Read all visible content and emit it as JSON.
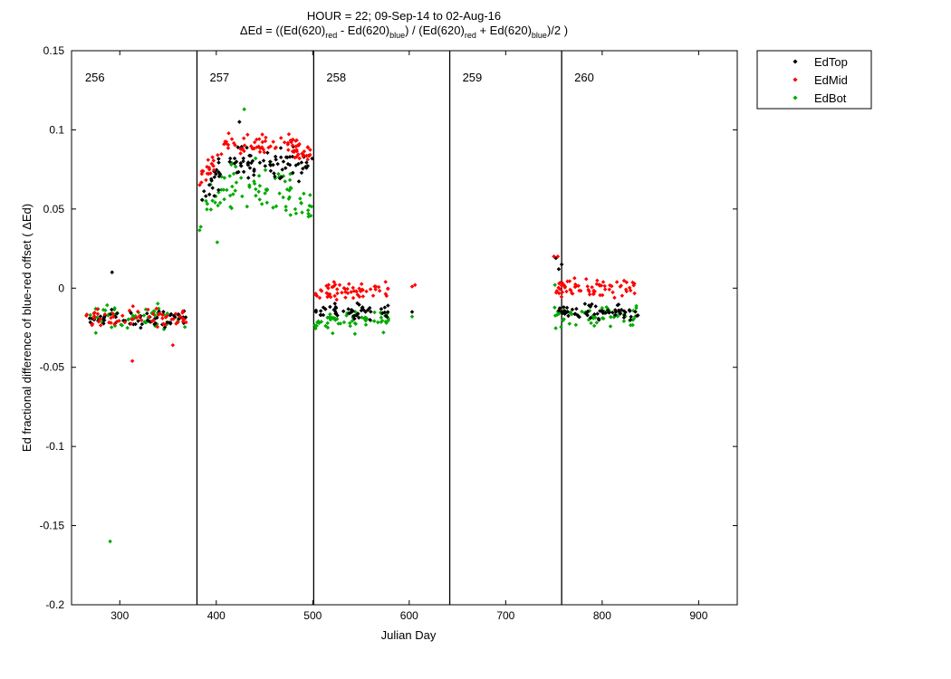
{
  "chart_data": {
    "type": "scatter",
    "title_line1": "HOUR = 22; 09-Sep-14 to 02-Aug-16",
    "title_line2": {
      "prefix": "ΔEd = ((Ed(620)",
      "sub_red": "red",
      "mid1": " - Ed(620)",
      "sub_blue": "blue",
      "mid2": ") / (Ed(620)",
      "sub_red2": "red",
      "mid3": " + Ed(620)",
      "sub_blue2": "blue",
      "suffix": ")/2  )"
    },
    "xlabel": "Julian Day",
    "ylabel": "Ed fractional difference of blue-red offset ( ΔEd)",
    "xlim": [
      250,
      940
    ],
    "ylim": [
      -0.2,
      0.15
    ],
    "xticks": [
      300,
      400,
      500,
      600,
      700,
      800,
      900
    ],
    "yticks": [
      0.15,
      0.1,
      0.05,
      0,
      -0.05,
      -0.1,
      -0.15,
      -0.2
    ],
    "ytick_labels": [
      "0.15",
      "0.1",
      "0.05",
      "0",
      "-0.05",
      "-0.1",
      "-0.15",
      "-0.2"
    ],
    "grid": false,
    "legend_position": "outside top-right",
    "dividers": [
      {
        "x": 380,
        "label": "257"
      },
      {
        "x": 501,
        "label": "258"
      },
      {
        "x": 642,
        "label": "259"
      },
      {
        "x": 758,
        "label": "260"
      }
    ],
    "first_segment_label": "256",
    "series": [
      {
        "name": "EdTop",
        "color": "#000000",
        "clusters": [
          {
            "x": [
              265,
              370
            ],
            "y": -0.019,
            "spread": 0.004,
            "n": 60
          },
          {
            "x": [
              382,
              500
            ],
            "y": 0.072,
            "spread": 0.008,
            "trend": [
              0.055,
              0.08
            ],
            "n": 90
          },
          {
            "x": [
              502,
              580
            ],
            "y": -0.015,
            "spread": 0.004,
            "n": 50
          },
          {
            "x": [
              750,
              838
            ],
            "y": -0.015,
            "spread": 0.004,
            "n": 60
          }
        ],
        "outliers": [
          [
            292,
            0.01
          ],
          [
            424,
            0.105
          ],
          [
            752,
            0.019
          ],
          [
            755,
            0.012
          ],
          [
            758,
            0.015
          ],
          [
            603,
            -0.015
          ]
        ]
      },
      {
        "name": "EdMid",
        "color": "#ff0000",
        "clusters": [
          {
            "x": [
              265,
              370
            ],
            "y": -0.019,
            "spread": 0.005,
            "n": 60
          },
          {
            "x": [
              382,
              500
            ],
            "y": 0.085,
            "spread": 0.006,
            "trend": [
              0.065,
              0.09
            ],
            "n": 100
          },
          {
            "x": [
              502,
              580
            ],
            "y": -0.002,
            "spread": 0.005,
            "n": 60
          },
          {
            "x": [
              750,
              838
            ],
            "y": 0.0,
            "spread": 0.005,
            "n": 70
          }
        ],
        "outliers": [
          [
            313,
            -0.046
          ],
          [
            355,
            -0.036
          ],
          [
            603,
            0.001
          ],
          [
            606,
            0.002
          ],
          [
            750,
            0.02
          ],
          [
            754,
            0.02
          ]
        ]
      },
      {
        "name": "EdBot",
        "color": "#00aa00",
        "clusters": [
          {
            "x": [
              265,
              370
            ],
            "y": -0.019,
            "spread": 0.007,
            "n": 60
          },
          {
            "x": [
              382,
              500
            ],
            "y": 0.062,
            "spread": 0.012,
            "trend": [
              0.045,
              0.065
            ],
            "n": 90
          },
          {
            "x": [
              502,
              580
            ],
            "y": -0.02,
            "spread": 0.006,
            "n": 60
          },
          {
            "x": [
              750,
              838
            ],
            "y": -0.018,
            "spread": 0.006,
            "n": 60
          }
        ],
        "outliers": [
          [
            290,
            -0.16
          ],
          [
            429,
            0.113
          ],
          [
            401,
            0.029
          ],
          [
            603,
            -0.018
          ],
          [
            751,
            0.002
          ]
        ]
      }
    ]
  }
}
